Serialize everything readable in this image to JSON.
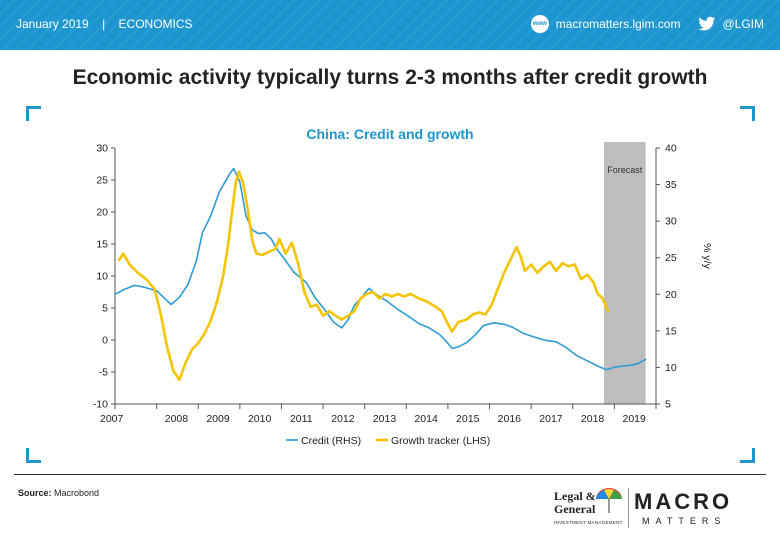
{
  "header": {
    "date": "January 2019",
    "separator": "|",
    "section": "ECONOMICS",
    "website": "macromatters.lgim.com",
    "www_icon_text": "www",
    "twitter": "@LGIM",
    "colors": {
      "bar": "#1d96d0"
    }
  },
  "headline": "Economic activity typically turns 2-3 months after credit growth",
  "chart_data": {
    "type": "line",
    "title": "China: Credit and growth",
    "forecast_label": "Forecast",
    "forecast_start": 2018.75,
    "forecast_end": 2019.75,
    "y_left": {
      "ticks": [
        30,
        25,
        20,
        15,
        10,
        5,
        0,
        -5,
        -10
      ],
      "range": [
        -10,
        30
      ],
      "label": ""
    },
    "y_right": {
      "ticks": [
        40,
        35,
        30,
        25,
        20,
        15,
        10,
        5
      ],
      "range": [
        5,
        40
      ],
      "label": "% y/y"
    },
    "x": {
      "ticks": [
        "2007",
        "2008",
        "2009",
        "2010",
        "2011",
        "2012",
        "2013",
        "2014",
        "2015",
        "2016",
        "2017",
        "2018",
        "2019"
      ],
      "range": [
        2007,
        2020
      ]
    },
    "series": [
      {
        "name": "Credit (RHS)",
        "axis": "right",
        "color": "#2d9bd2",
        "points": [
          [
            2007.0,
            20.0
          ],
          [
            2007.2,
            20.6
          ],
          [
            2007.45,
            21.2
          ],
          [
            2007.6,
            21.1
          ],
          [
            2007.8,
            20.8
          ],
          [
            2008.0,
            20.5
          ],
          [
            2008.2,
            19.4
          ],
          [
            2008.35,
            18.6
          ],
          [
            2008.55,
            19.6
          ],
          [
            2008.75,
            21.3
          ],
          [
            2008.95,
            24.5
          ],
          [
            2009.1,
            28.4
          ],
          [
            2009.3,
            30.7
          ],
          [
            2009.5,
            33.9
          ],
          [
            2009.75,
            36.4
          ],
          [
            2009.85,
            37.2
          ],
          [
            2010.0,
            35.4
          ],
          [
            2010.15,
            30.7
          ],
          [
            2010.3,
            28.8
          ],
          [
            2010.45,
            28.3
          ],
          [
            2010.6,
            28.4
          ],
          [
            2010.75,
            27.6
          ],
          [
            2010.9,
            26.1
          ],
          [
            2011.1,
            24.6
          ],
          [
            2011.3,
            23.0
          ],
          [
            2011.6,
            21.6
          ],
          [
            2011.8,
            19.6
          ],
          [
            2012.05,
            17.8
          ],
          [
            2012.25,
            16.2
          ],
          [
            2012.45,
            15.4
          ],
          [
            2012.6,
            16.5
          ],
          [
            2012.75,
            18.5
          ],
          [
            2012.9,
            19.4
          ],
          [
            2013.1,
            20.8
          ],
          [
            2013.3,
            19.9
          ],
          [
            2013.55,
            19.0
          ],
          [
            2013.8,
            17.9
          ],
          [
            2014.05,
            17.0
          ],
          [
            2014.3,
            16.0
          ],
          [
            2014.55,
            15.4
          ],
          [
            2014.8,
            14.5
          ],
          [
            2015.0,
            13.3
          ],
          [
            2015.1,
            12.6
          ],
          [
            2015.25,
            12.8
          ],
          [
            2015.45,
            13.4
          ],
          [
            2015.65,
            14.4
          ],
          [
            2015.85,
            15.7
          ],
          [
            2016.1,
            16.1
          ],
          [
            2016.35,
            15.9
          ],
          [
            2016.55,
            15.5
          ],
          [
            2016.8,
            14.7
          ],
          [
            2017.1,
            14.1
          ],
          [
            2017.35,
            13.7
          ],
          [
            2017.6,
            13.5
          ],
          [
            2017.85,
            12.7
          ],
          [
            2018.1,
            11.6
          ],
          [
            2018.35,
            10.9
          ],
          [
            2018.6,
            10.2
          ],
          [
            2018.8,
            9.7
          ],
          [
            2019.0,
            10.0
          ],
          [
            2019.2,
            10.2
          ],
          [
            2019.4,
            10.3
          ],
          [
            2019.55,
            10.5
          ],
          [
            2019.75,
            11.1
          ]
        ]
      },
      {
        "name": "Growth tracker (LHS)",
        "axis": "left",
        "color": "#f5c400",
        "points": [
          [
            2007.1,
            12.5
          ],
          [
            2007.2,
            13.5
          ],
          [
            2007.35,
            11.8
          ],
          [
            2007.55,
            10.5
          ],
          [
            2007.75,
            9.5
          ],
          [
            2007.95,
            8.0
          ],
          [
            2008.1,
            4.0
          ],
          [
            2008.25,
            -1.0
          ],
          [
            2008.4,
            -4.8
          ],
          [
            2008.55,
            -6.2
          ],
          [
            2008.7,
            -3.5
          ],
          [
            2008.85,
            -1.5
          ],
          [
            2009.0,
            -0.5
          ],
          [
            2009.15,
            1.0
          ],
          [
            2009.3,
            3.0
          ],
          [
            2009.45,
            6.0
          ],
          [
            2009.6,
            10.0
          ],
          [
            2009.72,
            15.0
          ],
          [
            2009.82,
            20.5
          ],
          [
            2009.9,
            24.5
          ],
          [
            2009.98,
            26.3
          ],
          [
            2010.08,
            24.5
          ],
          [
            2010.2,
            20.0
          ],
          [
            2010.3,
            15.5
          ],
          [
            2010.4,
            13.5
          ],
          [
            2010.55,
            13.3
          ],
          [
            2010.7,
            13.8
          ],
          [
            2010.85,
            14.2
          ],
          [
            2010.95,
            15.8
          ],
          [
            2011.1,
            13.5
          ],
          [
            2011.25,
            15.2
          ],
          [
            2011.4,
            12.0
          ],
          [
            2011.55,
            7.5
          ],
          [
            2011.7,
            5.2
          ],
          [
            2011.85,
            5.5
          ],
          [
            2012.0,
            3.8
          ],
          [
            2012.15,
            4.5
          ],
          [
            2012.3,
            3.8
          ],
          [
            2012.45,
            3.2
          ],
          [
            2012.6,
            3.8
          ],
          [
            2012.75,
            4.5
          ],
          [
            2012.9,
            6.5
          ],
          [
            2013.05,
            7.2
          ],
          [
            2013.2,
            7.5
          ],
          [
            2013.35,
            6.5
          ],
          [
            2013.5,
            7.2
          ],
          [
            2013.65,
            6.8
          ],
          [
            2013.8,
            7.2
          ],
          [
            2013.95,
            6.8
          ],
          [
            2014.1,
            7.2
          ],
          [
            2014.3,
            6.5
          ],
          [
            2014.5,
            6.0
          ],
          [
            2014.7,
            5.2
          ],
          [
            2014.85,
            4.5
          ],
          [
            2015.0,
            2.5
          ],
          [
            2015.1,
            1.3
          ],
          [
            2015.25,
            2.8
          ],
          [
            2015.45,
            3.2
          ],
          [
            2015.6,
            4.0
          ],
          [
            2015.75,
            4.3
          ],
          [
            2015.9,
            4.0
          ],
          [
            2016.05,
            5.5
          ],
          [
            2016.2,
            8.0
          ],
          [
            2016.35,
            10.5
          ],
          [
            2016.5,
            12.5
          ],
          [
            2016.65,
            14.5
          ],
          [
            2016.75,
            13.0
          ],
          [
            2016.85,
            10.8
          ],
          [
            2017.0,
            11.8
          ],
          [
            2017.15,
            10.5
          ],
          [
            2017.3,
            11.5
          ],
          [
            2017.45,
            12.2
          ],
          [
            2017.6,
            10.8
          ],
          [
            2017.75,
            12.0
          ],
          [
            2017.9,
            11.5
          ],
          [
            2018.05,
            11.8
          ],
          [
            2018.2,
            9.5
          ],
          [
            2018.35,
            10.2
          ],
          [
            2018.5,
            9.0
          ],
          [
            2018.6,
            7.2
          ],
          [
            2018.72,
            6.5
          ],
          [
            2018.8,
            5.2
          ],
          [
            2018.85,
            4.5
          ]
        ]
      }
    ],
    "legend": {
      "placement": "bottom-center"
    }
  },
  "footer": {
    "source_label": "Source:",
    "source_value": "Macrobond",
    "lg_line1": "Legal &",
    "lg_line2": "General",
    "lg_sub": "INVESTMENT MANAGEMENT",
    "mm_macro": "MACRO",
    "mm_matters": "MATTERS"
  }
}
